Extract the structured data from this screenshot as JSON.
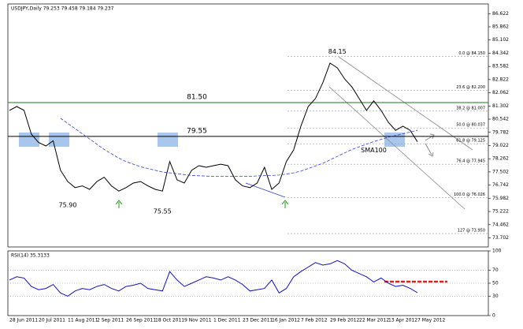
{
  "chart_data": {
    "type": "line",
    "title": "USDJPY,Daily  79.253 79.458 79.184 79.237",
    "categories": [
      "28 Jun 2011",
      null,
      null,
      null,
      "20 Jul 2011",
      null,
      null,
      null,
      "11 Aug 2011",
      null,
      null,
      null,
      "2 Sep 2011",
      null,
      null,
      null,
      "26 Sep 2011",
      null,
      null,
      null,
      "18 Oct 2011",
      null,
      null,
      null,
      "9 Nov 2011",
      null,
      null,
      null,
      "1 Dec 2011",
      null,
      null,
      null,
      "23 Dec 2011",
      null,
      null,
      null,
      "16 Jan 2012",
      null,
      null,
      null,
      "7 Feb 2012",
      null,
      null,
      null,
      "29 Feb 2012",
      null,
      null,
      null,
      "22 Mar 2012",
      null,
      null,
      null,
      "13 Apr 2012",
      null,
      null,
      null,
      "7 May 2012"
    ],
    "series": [
      {
        "name": "USDJPY",
        "color": "#000000",
        "values": [
          81.05,
          81.27,
          81.05,
          79.68,
          79.2,
          79.0,
          79.3,
          77.6,
          76.95,
          76.6,
          76.7,
          76.5,
          76.95,
          77.2,
          76.7,
          76.4,
          76.6,
          76.86,
          76.95,
          76.7,
          76.5,
          76.4,
          78.1,
          77.05,
          76.86,
          77.6,
          77.86,
          77.77,
          77.86,
          77.95,
          77.86,
          77.05,
          76.7,
          76.6,
          76.86,
          77.77,
          76.5,
          76.86,
          78.1,
          78.77,
          80.14,
          81.27,
          81.73,
          82.64,
          83.77,
          83.5,
          82.86,
          82.4,
          81.73,
          81.05,
          81.6,
          81.05,
          80.36,
          79.9,
          80.14,
          79.9,
          79.237
        ]
      },
      {
        "name": "SMA100",
        "color": "#3040d0",
        "values": [
          null,
          null,
          null,
          null,
          null,
          null,
          null,
          80.6,
          80.3,
          80.0,
          79.7,
          79.4,
          79.1,
          78.8,
          78.55,
          78.3,
          78.1,
          77.95,
          77.8,
          77.7,
          77.6,
          77.5,
          77.45,
          77.4,
          77.35,
          77.3,
          77.28,
          77.26,
          77.25,
          77.25,
          77.25,
          77.25,
          77.25,
          77.25,
          77.27,
          77.3,
          77.3,
          77.32,
          77.38,
          77.45,
          77.55,
          77.7,
          77.85,
          78.0,
          78.2,
          78.4,
          78.6,
          78.8,
          78.95,
          79.1,
          79.25,
          79.38,
          79.5,
          79.6,
          79.7,
          79.8,
          79.9
        ]
      }
    ],
    "ylim": [
      73.18,
      87.18
    ],
    "yticks": [
      86.622,
      85.862,
      85.102,
      84.342,
      83.582,
      82.822,
      82.062,
      81.302,
      80.542,
      79.782,
      79.022,
      78.262,
      77.502,
      76.742,
      75.982,
      75.222,
      74.462,
      73.702
    ],
    "levels": [
      {
        "value": 81.5,
        "label": "81.50",
        "color": "#1a7a1a"
      },
      {
        "value": 79.55,
        "label": "79.55",
        "color": "#000000"
      }
    ],
    "fib_levels": [
      {
        "value": 84.15,
        "label": "0.0 @ 84.150"
      },
      {
        "value": 82.2,
        "label": "23.6 @ 82.200"
      },
      {
        "value": 81.007,
        "label": "38.2 @ 81.007"
      },
      {
        "value": 80.037,
        "label": "50.0 @ 80.037"
      },
      {
        "value": 79.125,
        "label": "61.8 @ 79.125"
      },
      {
        "value": 77.945,
        "label": "76.4 @ 77.945"
      },
      {
        "value": 76.026,
        "label": "100.0 @ 76.026"
      },
      {
        "value": 73.95,
        "label": "127 @ 73.950"
      }
    ],
    "annotations": [
      {
        "text": "84.15",
        "value": 84.15,
        "index": 45
      },
      {
        "text": "75.90",
        "value": 75.9,
        "index": 8
      },
      {
        "text": "75.55",
        "value": 75.55,
        "index": 21
      },
      {
        "text": "SMA100",
        "value": 78.75,
        "index": 50
      }
    ],
    "rsi": {
      "title": "RSI(14) 35.3133",
      "color": "#1010c0",
      "values": [
        55,
        60,
        58,
        45,
        40,
        42,
        48,
        35,
        30,
        38,
        42,
        40,
        45,
        48,
        42,
        38,
        45,
        47,
        50,
        42,
        40,
        38,
        68,
        55,
        45,
        50,
        55,
        60,
        58,
        55,
        60,
        55,
        48,
        38,
        40,
        42,
        55,
        35,
        42,
        60,
        68,
        75,
        82,
        78,
        80,
        85,
        80,
        70,
        65,
        60,
        52,
        58,
        50,
        45,
        47,
        42,
        35.3133
      ],
      "ylim": [
        0,
        100
      ],
      "yticks": [
        0,
        30,
        50,
        70,
        100
      ],
      "levels": [
        30,
        50,
        70
      ]
    }
  }
}
